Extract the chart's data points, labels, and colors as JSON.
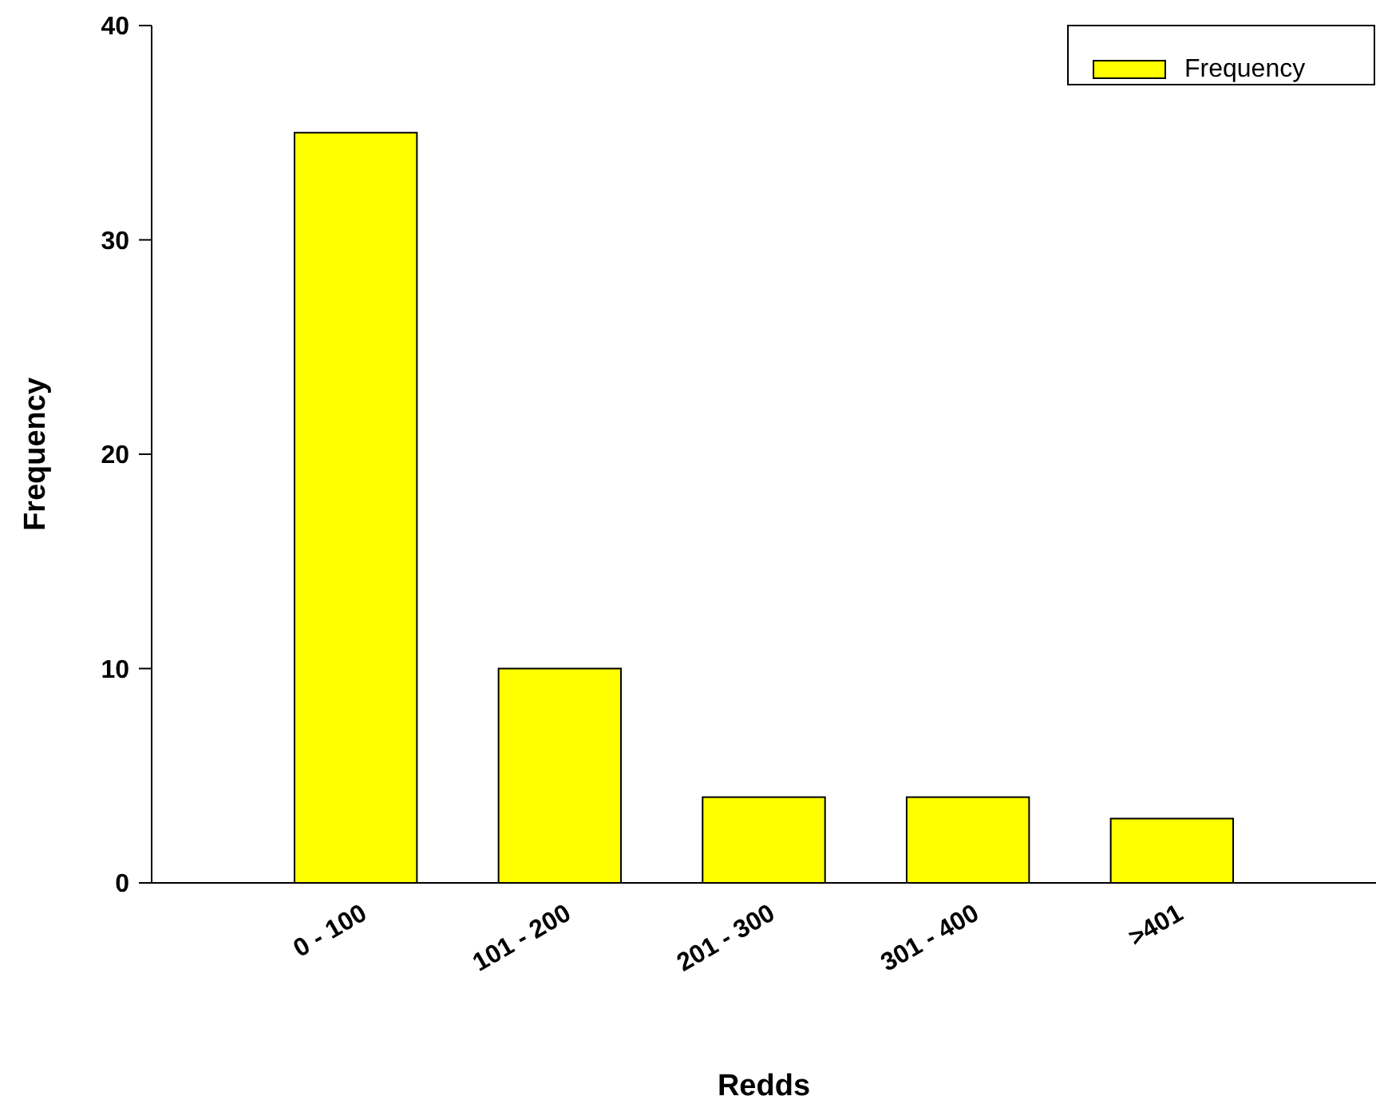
{
  "chart_data": {
    "type": "bar",
    "xlabel": "Redds",
    "ylabel": "Frequency",
    "categories": [
      "0 - 100",
      "101 - 200",
      "201 - 300",
      "301 - 400",
      ">401"
    ],
    "series": [
      {
        "name": "Frequency",
        "color": "#ffff00",
        "values": [
          35,
          10,
          4,
          4,
          3
        ]
      }
    ],
    "ylim": [
      0,
      40
    ],
    "yticks": [
      0,
      10,
      20,
      30,
      40
    ],
    "grid": false,
    "legend": "top right"
  }
}
